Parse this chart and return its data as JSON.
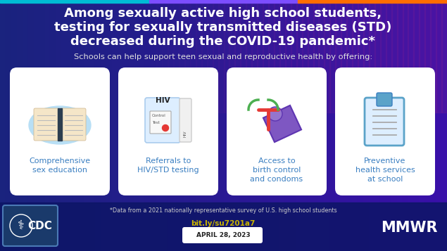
{
  "title_line1": "Among sexually active high school students,",
  "title_line2": "testing for sexually transmitted diseases (STD)",
  "title_line3": "decreased during the COVID-19 pandemic*",
  "subtitle": "Schools can help support teen sexual and reproductive health by offering:",
  "card_labels": [
    "Comprehensive\nsex education",
    "Referrals to\nHIV/STD testing",
    "Access to\nbirth control\nand condoms",
    "Preventive\nhealth services\nat school"
  ],
  "footnote": "*Data from a 2021 nationally representative survey of U.S. high school students",
  "url": "bit.ly/su7201a7",
  "date": "APRIL 28, 2023",
  "url_color": "#c8b400",
  "card_bg": "#ffffff",
  "card_text_color": "#3a7fc1",
  "title_color": "#ffffff",
  "subtitle_color": "#e0e0e0",
  "footnote_color": "#cccccc",
  "mmwr_color": "#ffffff",
  "top_bar_colors": [
    "#00bcd4",
    "#7c4dff",
    "#ff6d00"
  ],
  "fig_width": 6.35,
  "fig_height": 3.57
}
